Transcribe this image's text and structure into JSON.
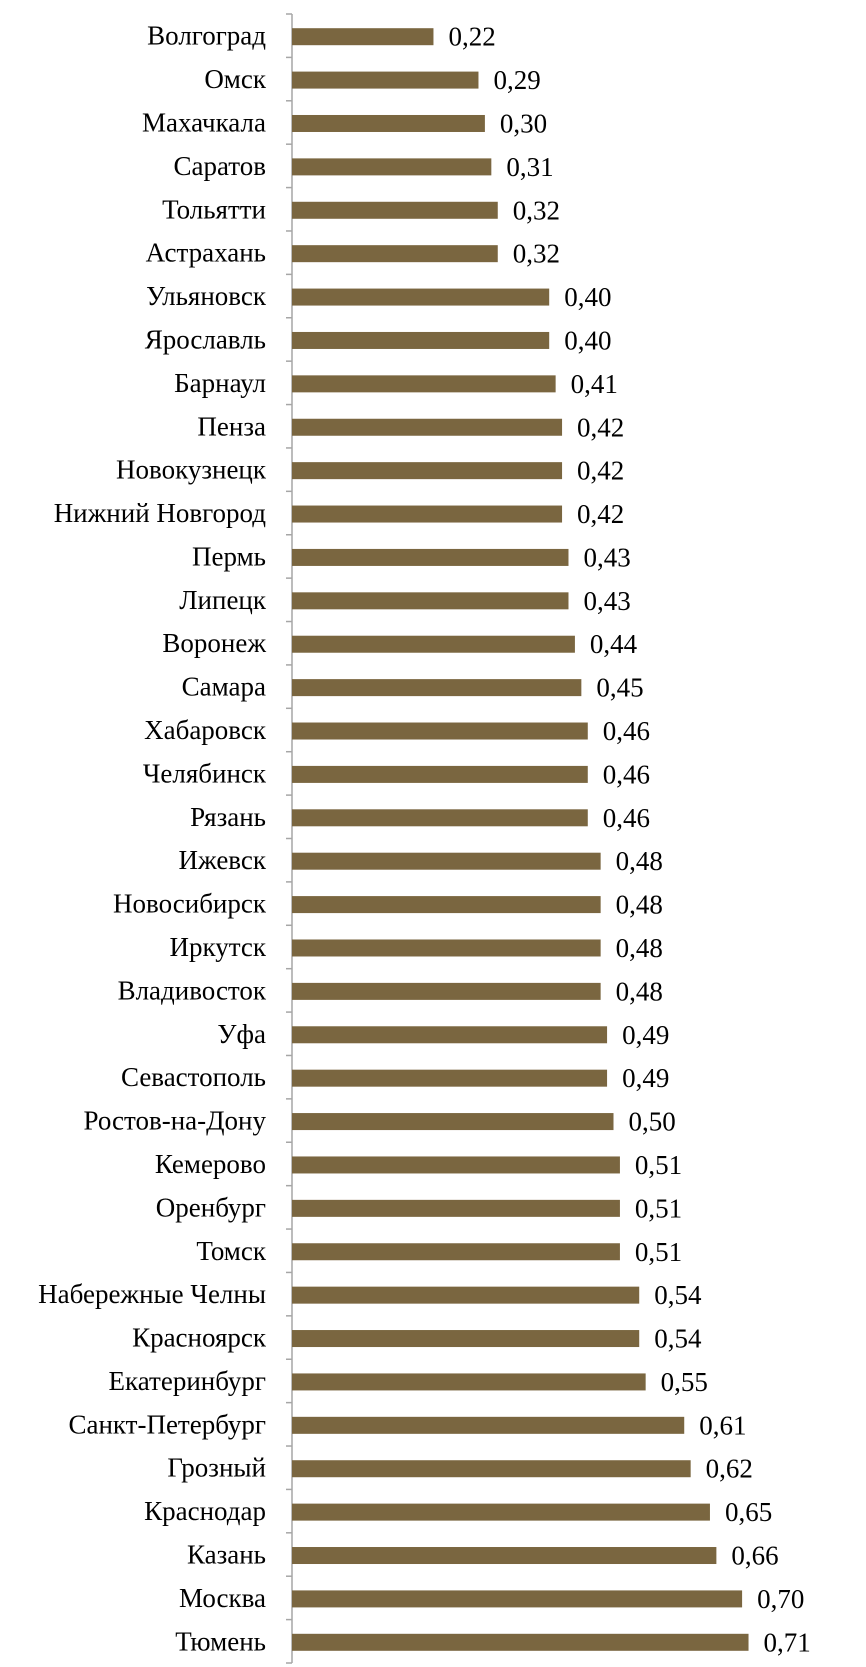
{
  "chart_data": {
    "type": "bar",
    "orientation": "horizontal",
    "categories": [
      "Волгоград",
      "Омск",
      "Махачкала",
      "Саратов",
      "Тольятти",
      "Астрахань",
      "Ульяновск",
      "Ярославль",
      "Барнаул",
      "Пенза",
      "Новокузнецк",
      "Нижний Новгород",
      "Пермь",
      "Липецк",
      "Воронеж",
      "Самара",
      "Хабаровск",
      "Челябинск",
      "Рязань",
      "Ижевск",
      "Новосибирск",
      "Иркутск",
      "Владивосток",
      "Уфа",
      "Севастополь",
      "Ростов-на-Дону",
      "Кемерово",
      "Оренбург",
      "Томск",
      "Набережные Челны",
      "Красноярск",
      "Екатеринбург",
      "Санкт-Петербург",
      "Грозный",
      "Краснодар",
      "Казань",
      "Москва",
      "Тюмень"
    ],
    "values": [
      0.22,
      0.29,
      0.3,
      0.31,
      0.32,
      0.32,
      0.4,
      0.4,
      0.41,
      0.42,
      0.42,
      0.42,
      0.43,
      0.43,
      0.44,
      0.45,
      0.46,
      0.46,
      0.46,
      0.48,
      0.48,
      0.48,
      0.48,
      0.49,
      0.49,
      0.5,
      0.51,
      0.51,
      0.51,
      0.54,
      0.54,
      0.55,
      0.61,
      0.62,
      0.65,
      0.66,
      0.7,
      0.71
    ],
    "value_labels": [
      "0,22",
      "0,29",
      "0,30",
      "0,31",
      "0,32",
      "0,32",
      "0,40",
      "0,40",
      "0,41",
      "0,42",
      "0,42",
      "0,42",
      "0,43",
      "0,43",
      "0,44",
      "0,45",
      "0,46",
      "0,46",
      "0,46",
      "0,48",
      "0,48",
      "0,48",
      "0,48",
      "0,49",
      "0,49",
      "0,50",
      "0,51",
      "0,51",
      "0,51",
      "0,54",
      "0,54",
      "0,55",
      "0,61",
      "0,62",
      "0,65",
      "0,66",
      "0,70",
      "0,71"
    ],
    "xlim": [
      0,
      0.75
    ],
    "title": "",
    "xlabel": "",
    "ylabel": "",
    "grid": false,
    "legend": "none",
    "bar_color": "#7a6640"
  }
}
